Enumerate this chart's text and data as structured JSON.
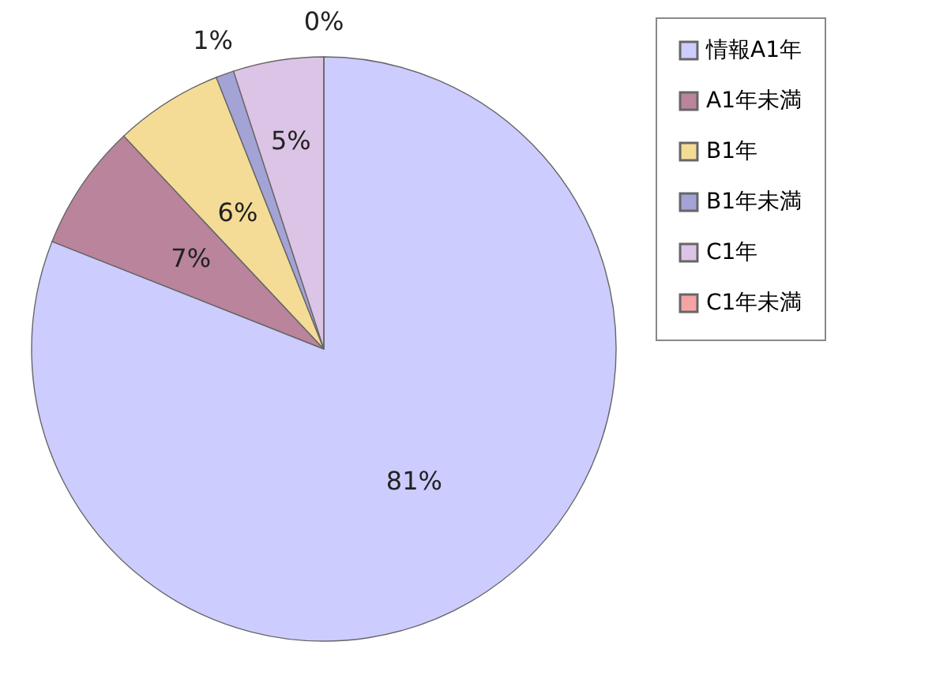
{
  "chart_data": {
    "type": "pie",
    "categories": [
      "情報A1年",
      "A1年未満",
      "B1年",
      "B1年未満",
      "C1年",
      "C1年未満"
    ],
    "values": [
      81,
      7,
      6,
      1,
      5,
      0
    ],
    "colors": [
      "#ccccff",
      "#b9849c",
      "#f5dc96",
      "#a3a3d6",
      "#dcc4e6",
      "#f4a4a4"
    ],
    "value_labels": [
      "81%",
      "7%",
      "6%",
      "1%",
      "5%",
      "0%"
    ],
    "legend": "right"
  }
}
